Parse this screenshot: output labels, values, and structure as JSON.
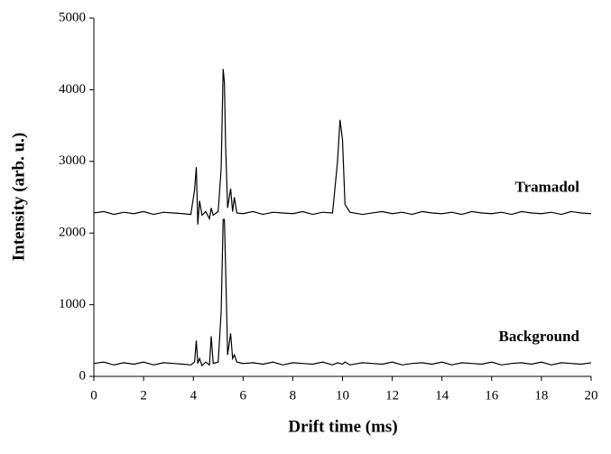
{
  "chart_data": {
    "type": "line",
    "xlabel": "Drift time (ms)",
    "ylabel": "Intensity (arb. u.)",
    "xlim": [
      0,
      20
    ],
    "xticks": [
      0,
      2,
      4,
      6,
      8,
      10,
      12,
      14,
      16,
      18,
      20
    ],
    "ylim": [
      0,
      5000
    ],
    "yticks": [
      0,
      1000,
      2000,
      3000,
      4000,
      5000
    ],
    "grid": false,
    "x": [
      0,
      0.4,
      0.8,
      1.2,
      1.6,
      2.0,
      2.4,
      2.8,
      3.2,
      3.6,
      3.9,
      4.05,
      4.12,
      4.18,
      4.25,
      4.35,
      4.5,
      4.65,
      4.72,
      4.8,
      5.0,
      5.12,
      5.2,
      5.25,
      5.3,
      5.38,
      5.5,
      5.58,
      5.65,
      5.75,
      6.0,
      6.4,
      6.8,
      7.2,
      7.6,
      8.0,
      8.4,
      8.8,
      9.2,
      9.6,
      9.8,
      9.9,
      10.0,
      10.1,
      10.3,
      10.8,
      11.2,
      11.6,
      12,
      12.4,
      12.8,
      13.2,
      13.6,
      14,
      14.4,
      14.8,
      15.2,
      15.6,
      16,
      16.4,
      16.8,
      17.2,
      17.6,
      18,
      18.4,
      18.8,
      19.2,
      19.6,
      20
    ],
    "series": [
      {
        "name": "Tramadol",
        "color": "#000000",
        "values": [
          2280,
          2300,
          2260,
          2290,
          2270,
          2300,
          2260,
          2290,
          2280,
          2270,
          2260,
          2600,
          2920,
          2120,
          2450,
          2250,
          2300,
          2200,
          2350,
          2250,
          2300,
          2900,
          4290,
          4100,
          3200,
          2350,
          2620,
          2300,
          2500,
          2280,
          2270,
          2300,
          2260,
          2290,
          2280,
          2270,
          2300,
          2260,
          2290,
          2280,
          3000,
          3580,
          3300,
          2400,
          2290,
          2260,
          2280,
          2300,
          2270,
          2290,
          2260,
          2300,
          2280,
          2270,
          2290,
          2260,
          2300,
          2280,
          2270,
          2290,
          2260,
          2300,
          2280,
          2270,
          2290,
          2260,
          2300,
          2280,
          2270
        ]
      },
      {
        "name": "Background",
        "color": "#000000",
        "values": [
          180,
          200,
          160,
          190,
          170,
          200,
          160,
          190,
          180,
          170,
          160,
          200,
          500,
          180,
          250,
          150,
          200,
          160,
          560,
          180,
          200,
          900,
          2190,
          2190,
          1500,
          300,
          600,
          250,
          300,
          200,
          180,
          190,
          170,
          200,
          160,
          190,
          180,
          170,
          200,
          160,
          190,
          180,
          170,
          200,
          160,
          190,
          180,
          170,
          200,
          160,
          180,
          190,
          170,
          200,
          160,
          190,
          180,
          170,
          200,
          160,
          180,
          190,
          170,
          200,
          160,
          190,
          180,
          170,
          190
        ]
      }
    ]
  }
}
